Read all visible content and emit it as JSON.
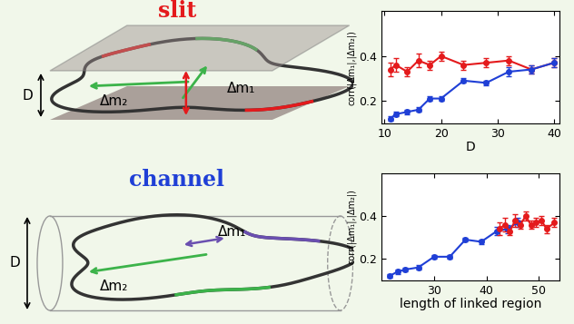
{
  "diagram": {
    "panels": [
      {
        "title": "slit",
        "title_color": "#e41a1c",
        "dimension": "D",
        "labels": [
          "Δm₁",
          "Δm₂"
        ]
      },
      {
        "title": "channel",
        "title_color": "#1f3fd6",
        "dimension": "D",
        "labels": [
          "Δm₁",
          "Δm₂"
        ]
      }
    ]
  },
  "chart_data": [
    {
      "type": "line",
      "xlabel": "D",
      "ylabel": "corr(|Δm₁|,|Δm₂|)",
      "xlim": [
        9.5,
        41
      ],
      "xticks": [
        10,
        20,
        30,
        40
      ],
      "ylim": [
        0.1,
        0.6
      ],
      "yticks": [
        0.2,
        0.4
      ],
      "grid": false,
      "marker": "o",
      "series": [
        {
          "color": "#e41a1c",
          "x": [
            11,
            12,
            14,
            16,
            18,
            20,
            24,
            28,
            32,
            36,
            40
          ],
          "values": [
            0.34,
            0.36,
            0.33,
            0.38,
            0.36,
            0.4,
            0.36,
            0.37,
            0.38,
            0.34,
            0.37
          ],
          "errors": [
            0.03,
            0.03,
            0.02,
            0.03,
            0.02,
            0.02,
            0.02,
            0.02,
            0.02,
            0.02,
            0.02
          ]
        },
        {
          "color": "#1f3fd6",
          "x": [
            11,
            12,
            14,
            16,
            18,
            20,
            24,
            28,
            32,
            36,
            40
          ],
          "values": [
            0.12,
            0.14,
            0.15,
            0.16,
            0.21,
            0.21,
            0.29,
            0.28,
            0.33,
            0.34,
            0.37
          ],
          "errors": [
            0.01,
            0.01,
            0.01,
            0.01,
            0.01,
            0.01,
            0.01,
            0.01,
            0.02,
            0.02,
            0.02
          ]
        }
      ]
    },
    {
      "type": "line",
      "xlabel": "length of linked region",
      "ylabel": "corr(|Δm₁|,|Δm₂|)",
      "xlim": [
        20,
        54
      ],
      "xticks": [
        30,
        40,
        50
      ],
      "ylim": [
        0.1,
        0.6
      ],
      "yticks": [
        0.2,
        0.4
      ],
      "grid": false,
      "marker": "o",
      "series": [
        {
          "color": "#1f3fd6",
          "x": [
            21.5,
            23,
            24.5,
            27,
            30,
            33,
            36,
            39,
            42,
            44,
            46
          ],
          "values": [
            0.12,
            0.14,
            0.15,
            0.16,
            0.21,
            0.21,
            0.29,
            0.28,
            0.33,
            0.34,
            0.37
          ],
          "errors": [
            0.01,
            0.01,
            0.01,
            0.01,
            0.01,
            0.01,
            0.01,
            0.01,
            0.02,
            0.02,
            0.02
          ]
        },
        {
          "color": "#e41a1c",
          "x": [
            42.5,
            43.5,
            44.5,
            45.5,
            46.5,
            47.5,
            48.5,
            49.5,
            50.5,
            51.5,
            53
          ],
          "values": [
            0.34,
            0.36,
            0.33,
            0.38,
            0.36,
            0.4,
            0.36,
            0.37,
            0.38,
            0.34,
            0.37
          ],
          "errors": [
            0.03,
            0.03,
            0.02,
            0.03,
            0.02,
            0.02,
            0.02,
            0.02,
            0.02,
            0.02,
            0.02
          ]
        }
      ]
    }
  ]
}
